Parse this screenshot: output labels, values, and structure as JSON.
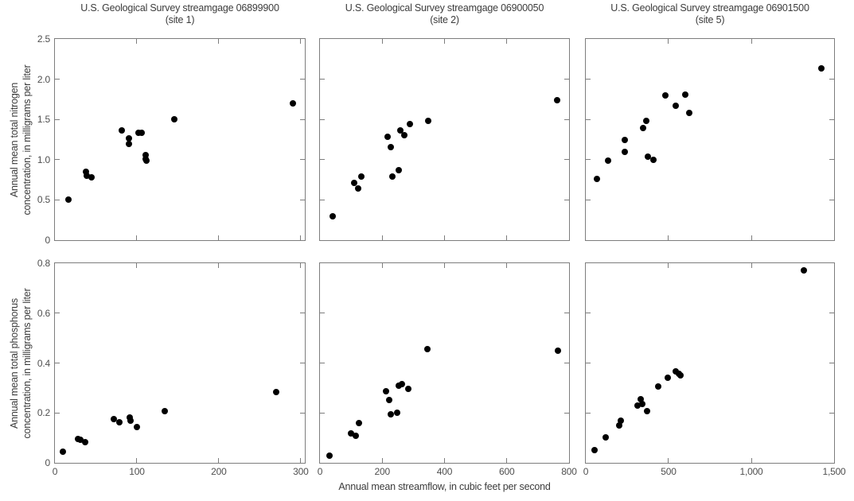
{
  "figure": {
    "xlabel": "Annual mean streamflow, in cubic feet per second",
    "nitrogen_ylabel_line1": "Annual mean total nitrogen",
    "nitrogen_ylabel_line2": "concentration, in milligrams per liter",
    "phosphorus_ylabel_line1": "Annual mean total phosphorus",
    "phosphorus_ylabel_line2": "concentration, in milligrams per liter",
    "colors": {
      "dot": "#000000",
      "frame": "#7d7d7d",
      "tick_label": "#4f4f4f",
      "text": "#3c3c3c",
      "background": "#ffffff"
    }
  },
  "chart_data": [
    {
      "id": "site1-nitrogen",
      "type": "scatter",
      "title": "U.S. Geological Survey streamgage 06899900",
      "subtitle": "(site 1)",
      "x_variable": "Annual mean streamflow, in cubic feet per second",
      "y_variable": "Annual mean total nitrogen concentration, in milligrams per liter",
      "xlim": [
        0,
        305
      ],
      "ylim": [
        0,
        2.5
      ],
      "grid": false,
      "legend": false,
      "xticks": [
        {
          "v": 0,
          "label": "0"
        },
        {
          "v": 100,
          "label": "100"
        },
        {
          "v": 200,
          "label": "200"
        },
        {
          "v": 300,
          "label": "300"
        }
      ],
      "yticks": [
        {
          "v": 0,
          "label": "0"
        },
        {
          "v": 0.5,
          "label": "0.5"
        },
        {
          "v": 1.0,
          "label": "1.0"
        },
        {
          "v": 1.5,
          "label": "1.5"
        },
        {
          "v": 2.0,
          "label": "2.0"
        },
        {
          "v": 2.5,
          "label": "2.5"
        }
      ],
      "show_xtick_labels": false,
      "show_ytick_labels": true,
      "points": [
        [
          17,
          0.5
        ],
        [
          38,
          0.85
        ],
        [
          39,
          0.8
        ],
        [
          45,
          0.78
        ],
        [
          82,
          1.36
        ],
        [
          90,
          1.26
        ],
        [
          90,
          1.2
        ],
        [
          102,
          1.33
        ],
        [
          106,
          1.33
        ],
        [
          111,
          1.06
        ],
        [
          111,
          1.01
        ],
        [
          112,
          0.99
        ],
        [
          146,
          1.5
        ],
        [
          290,
          1.7
        ]
      ]
    },
    {
      "id": "site2-nitrogen",
      "type": "scatter",
      "title": "U.S. Geological Survey streamgage 06900050",
      "subtitle": "(site 2)",
      "x_variable": "Annual mean streamflow, in cubic feet per second",
      "y_variable": "Annual mean total nitrogen concentration, in milligrams per liter",
      "xlim": [
        0,
        800
      ],
      "ylim": [
        0,
        2.5
      ],
      "grid": false,
      "legend": false,
      "xticks": [
        {
          "v": 0,
          "label": "0"
        },
        {
          "v": 200,
          "label": "200"
        },
        {
          "v": 400,
          "label": "400"
        },
        {
          "v": 600,
          "label": "600"
        },
        {
          "v": 800,
          "label": "800"
        }
      ],
      "yticks": [
        {
          "v": 0,
          "label": "0"
        },
        {
          "v": 0.5,
          "label": "0.5"
        },
        {
          "v": 1.0,
          "label": "1.0"
        },
        {
          "v": 1.5,
          "label": "1.5"
        },
        {
          "v": 2.0,
          "label": "2.0"
        },
        {
          "v": 2.5,
          "label": "2.5"
        }
      ],
      "show_xtick_labels": false,
      "show_ytick_labels": false,
      "points": [
        [
          40,
          0.3
        ],
        [
          110,
          0.71
        ],
        [
          122,
          0.64
        ],
        [
          134,
          0.79
        ],
        [
          218,
          1.28
        ],
        [
          228,
          1.16
        ],
        [
          233,
          0.79
        ],
        [
          253,
          0.87
        ],
        [
          258,
          1.36
        ],
        [
          270,
          1.3
        ],
        [
          289,
          1.44
        ],
        [
          348,
          1.48
        ],
        [
          762,
          1.74
        ]
      ]
    },
    {
      "id": "site5-nitrogen",
      "type": "scatter",
      "title": "U.S. Geological Survey streamgage 06901500",
      "subtitle": "(site 5)",
      "x_variable": "Annual mean streamflow, in cubic feet per second",
      "y_variable": "Annual mean total nitrogen concentration, in milligrams per liter",
      "xlim": [
        0,
        1500
      ],
      "ylim": [
        0,
        2.5
      ],
      "grid": false,
      "legend": false,
      "xticks": [
        {
          "v": 0,
          "label": "0"
        },
        {
          "v": 500,
          "label": "500"
        },
        {
          "v": 1000,
          "label": "1,000"
        },
        {
          "v": 1500,
          "label": "1,500"
        }
      ],
      "yticks": [
        {
          "v": 0,
          "label": "0"
        },
        {
          "v": 0.5,
          "label": "0.5"
        },
        {
          "v": 1.0,
          "label": "1.0"
        },
        {
          "v": 1.5,
          "label": "1.5"
        },
        {
          "v": 2.0,
          "label": "2.0"
        },
        {
          "v": 2.5,
          "label": "2.5"
        }
      ],
      "show_xtick_labels": false,
      "show_ytick_labels": false,
      "points": [
        [
          67,
          0.76
        ],
        [
          135,
          0.99
        ],
        [
          235,
          1.1
        ],
        [
          235,
          1.25
        ],
        [
          345,
          1.39
        ],
        [
          363,
          1.48
        ],
        [
          374,
          1.04
        ],
        [
          409,
          1.0
        ],
        [
          481,
          1.8
        ],
        [
          541,
          1.67
        ],
        [
          599,
          1.81
        ],
        [
          623,
          1.58
        ],
        [
          1425,
          2.13
        ]
      ]
    },
    {
      "id": "site1-phosphorus",
      "type": "scatter",
      "x_variable": "Annual mean streamflow, in cubic feet per second",
      "y_variable": "Annual mean total phosphorus concentration, in milligrams per liter",
      "xlim": [
        0,
        305
      ],
      "ylim": [
        0,
        0.8
      ],
      "grid": false,
      "legend": false,
      "xticks": [
        {
          "v": 0,
          "label": "0"
        },
        {
          "v": 100,
          "label": "100"
        },
        {
          "v": 200,
          "label": "200"
        },
        {
          "v": 300,
          "label": "300"
        }
      ],
      "yticks": [
        {
          "v": 0,
          "label": "0"
        },
        {
          "v": 0.2,
          "label": "0.2"
        },
        {
          "v": 0.4,
          "label": "0.4"
        },
        {
          "v": 0.6,
          "label": "0.6"
        },
        {
          "v": 0.8,
          "label": "0.8"
        }
      ],
      "show_xtick_labels": true,
      "show_ytick_labels": true,
      "points": [
        [
          10,
          0.046
        ],
        [
          28,
          0.096
        ],
        [
          31,
          0.091
        ],
        [
          37,
          0.082
        ],
        [
          72,
          0.175
        ],
        [
          79,
          0.161
        ],
        [
          91,
          0.181
        ],
        [
          92,
          0.17
        ],
        [
          100,
          0.145
        ],
        [
          134,
          0.208
        ],
        [
          270,
          0.283
        ]
      ]
    },
    {
      "id": "site2-phosphorus",
      "type": "scatter",
      "x_variable": "Annual mean streamflow, in cubic feet per second",
      "y_variable": "Annual mean total phosphorus concentration, in milligrams per liter",
      "xlim": [
        0,
        800
      ],
      "ylim": [
        0,
        0.8
      ],
      "grid": false,
      "legend": false,
      "xticks": [
        {
          "v": 0,
          "label": "0"
        },
        {
          "v": 200,
          "label": "200"
        },
        {
          "v": 400,
          "label": "400"
        },
        {
          "v": 600,
          "label": "600"
        },
        {
          "v": 800,
          "label": "800"
        }
      ],
      "yticks": [
        {
          "v": 0,
          "label": "0"
        },
        {
          "v": 0.2,
          "label": "0.2"
        },
        {
          "v": 0.4,
          "label": "0.4"
        },
        {
          "v": 0.6,
          "label": "0.6"
        },
        {
          "v": 0.8,
          "label": "0.8"
        }
      ],
      "show_xtick_labels": true,
      "show_ytick_labels": false,
      "points": [
        [
          31,
          0.03
        ],
        [
          100,
          0.119
        ],
        [
          116,
          0.107
        ],
        [
          125,
          0.16
        ],
        [
          212,
          0.288
        ],
        [
          222,
          0.253
        ],
        [
          228,
          0.194
        ],
        [
          249,
          0.2
        ],
        [
          254,
          0.31
        ],
        [
          264,
          0.316
        ],
        [
          283,
          0.297
        ],
        [
          345,
          0.455
        ],
        [
          764,
          0.45
        ]
      ]
    },
    {
      "id": "site5-phosphorus",
      "type": "scatter",
      "x_variable": "Annual mean streamflow, in cubic feet per second",
      "y_variable": "Annual mean total phosphorus concentration, in milligrams per liter",
      "xlim": [
        0,
        1500
      ],
      "ylim": [
        0,
        0.8
      ],
      "grid": false,
      "legend": false,
      "xticks": [
        {
          "v": 0,
          "label": "0"
        },
        {
          "v": 500,
          "label": "500"
        },
        {
          "v": 1000,
          "label": "1,000"
        },
        {
          "v": 1500,
          "label": "1,500"
        }
      ],
      "yticks": [
        {
          "v": 0,
          "label": "0"
        },
        {
          "v": 0.2,
          "label": "0.2"
        },
        {
          "v": 0.4,
          "label": "0.4"
        },
        {
          "v": 0.6,
          "label": "0.6"
        },
        {
          "v": 0.8,
          "label": "0.8"
        }
      ],
      "show_xtick_labels": true,
      "show_ytick_labels": false,
      "points": [
        [
          51,
          0.05
        ],
        [
          119,
          0.102
        ],
        [
          204,
          0.149
        ],
        [
          212,
          0.168
        ],
        [
          312,
          0.231
        ],
        [
          330,
          0.255
        ],
        [
          342,
          0.236
        ],
        [
          369,
          0.208
        ],
        [
          438,
          0.307
        ],
        [
          494,
          0.342
        ],
        [
          541,
          0.366
        ],
        [
          562,
          0.356
        ],
        [
          573,
          0.352
        ],
        [
          1319,
          0.77
        ]
      ]
    }
  ]
}
